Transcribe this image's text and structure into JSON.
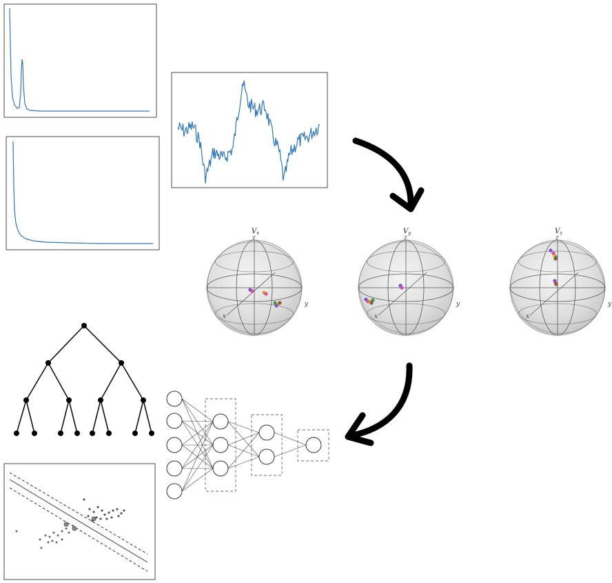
{
  "spheres": [
    {
      "title": "V",
      "sub": "x",
      "z": "z",
      "y": "y",
      "x": "x"
    },
    {
      "title": "V",
      "sub": "y",
      "z": "z",
      "y": "y",
      "x": "x"
    },
    {
      "title": "V",
      "sub": "z",
      "z": "z",
      "y": "y",
      "x": "x"
    }
  ],
  "colors": {
    "line": "#2e75b6",
    "points": [
      "#7b4fd0",
      "#d14fa0",
      "#e89a2b",
      "#3a9a4a",
      "#8a5a3a"
    ]
  }
}
